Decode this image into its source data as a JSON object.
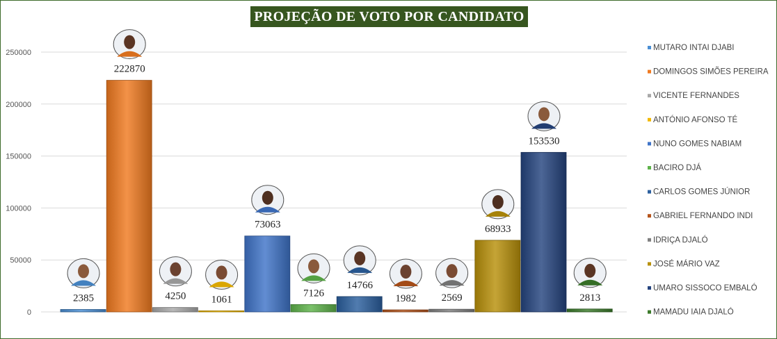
{
  "chart_data": {
    "type": "bar",
    "title": "PROJEÇÃO DE VOTO POR CANDIDATO",
    "xlabel": "",
    "ylabel": "",
    "ylim": [
      0,
      250000
    ],
    "yticks": [
      "0",
      "50000",
      "100000",
      "150000",
      "200000",
      "250000"
    ],
    "grid": true,
    "legend_position": "right",
    "series": [
      {
        "name": "MUTARO INTAI DJABI",
        "value": 2385,
        "color": "#4a8fd4"
      },
      {
        "name": "DOMINGOS SIMÕES PEREIRA",
        "value": 222870,
        "color": "#f07a20"
      },
      {
        "name": "VICENTE FERNANDES",
        "value": 4250,
        "color": "#a8a8a8"
      },
      {
        "name": "ANTÓNIO AFONSO TÉ",
        "value": 1061,
        "color": "#f2b800"
      },
      {
        "name": "NUNO GOMES NABIAM",
        "value": 73063,
        "color": "#3f74c8"
      },
      {
        "name": "BACIRO DJÁ",
        "value": 7126,
        "color": "#5eb34a"
      },
      {
        "name": "CARLOS GOMES JÚNIOR",
        "value": 14766,
        "color": "#2b5f9e"
      },
      {
        "name": "GABRIEL FERNANDO INDI",
        "value": 1982,
        "color": "#b5531a"
      },
      {
        "name": "IDRIÇA DJALÓ",
        "value": 2569,
        "color": "#7f7f7f"
      },
      {
        "name": "JOSÉ MÁRIO VAZ",
        "value": 68933,
        "color": "#b8900a"
      },
      {
        "name": "UMARO SISSOCO EMBALÓ",
        "value": 153530,
        "color": "#25447f"
      },
      {
        "name": "MAMADU IAIA DJALÓ",
        "value": 2813,
        "color": "#3b7a2a"
      }
    ]
  }
}
